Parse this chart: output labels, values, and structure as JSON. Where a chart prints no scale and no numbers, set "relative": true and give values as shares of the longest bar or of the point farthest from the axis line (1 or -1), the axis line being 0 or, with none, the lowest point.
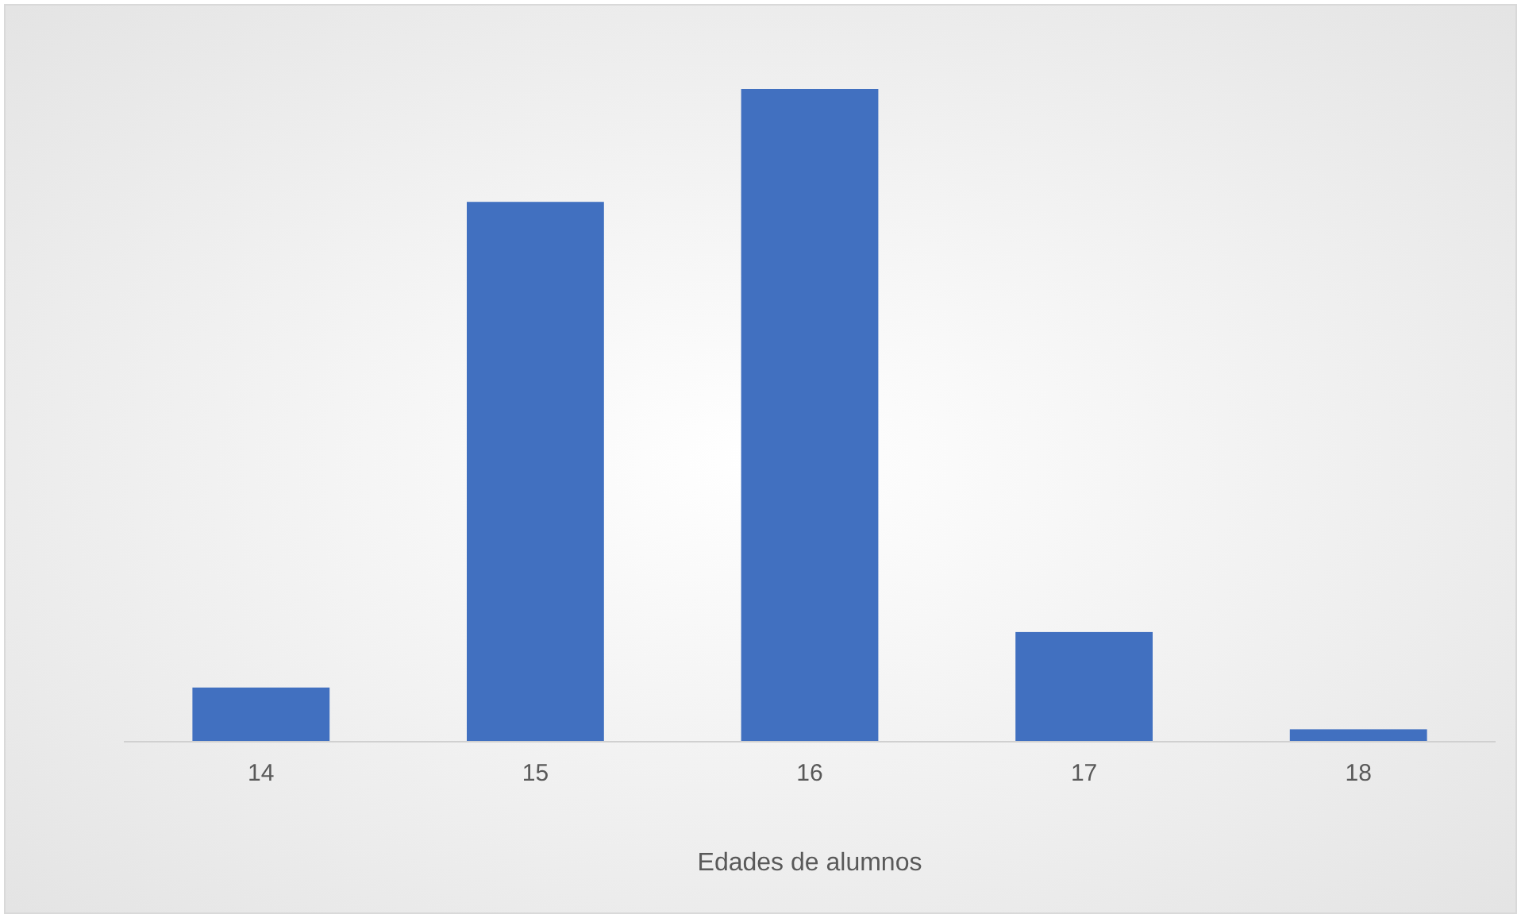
{
  "chart_data": {
    "type": "bar",
    "xlabel": "Edades de alumnos",
    "categories": [
      "14",
      "15",
      "16",
      "17",
      "18"
    ],
    "values": [
      0.083,
      0.827,
      1,
      0.168,
      0.019
    ],
    "color": "#4170c0",
    "relative": true
  }
}
